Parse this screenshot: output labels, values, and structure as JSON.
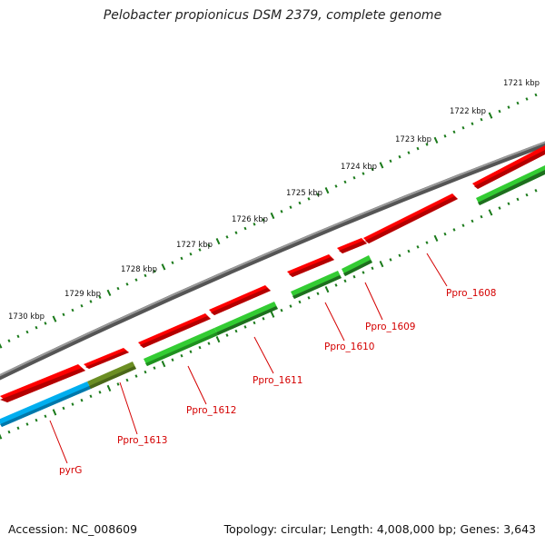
{
  "header": {
    "title": "Pelobacter propionicus DSM 2379, complete genome"
  },
  "footer": {
    "accession": "Accession: NC_008609",
    "topology": "Topology: circular; Length: 4,008,000 bp; Genes: 3,643"
  },
  "scale_labels": [
    "1721 kbp",
    "1722 kbp",
    "1723 kbp",
    "1724 kbp",
    "1725 kbp",
    "1726 kbp",
    "1727 kbp",
    "1728 kbp",
    "1729 kbp",
    "1730 kbp"
  ],
  "gene_labels": [
    "Ppro_1608",
    "Ppro_1609",
    "Ppro_1610",
    "Ppro_1611",
    "Ppro_1612",
    "Ppro_1613",
    "pyrG"
  ],
  "colors": {
    "backbone": "#777777",
    "forward_feature": "#ff0000",
    "gene_green": "#33cc33",
    "gene_dark_green": "#228b22",
    "gene_olive": "#6b8e23",
    "gene_blue": "#00aeef",
    "label": "#d40000",
    "tick": "#1a7a1a"
  }
}
